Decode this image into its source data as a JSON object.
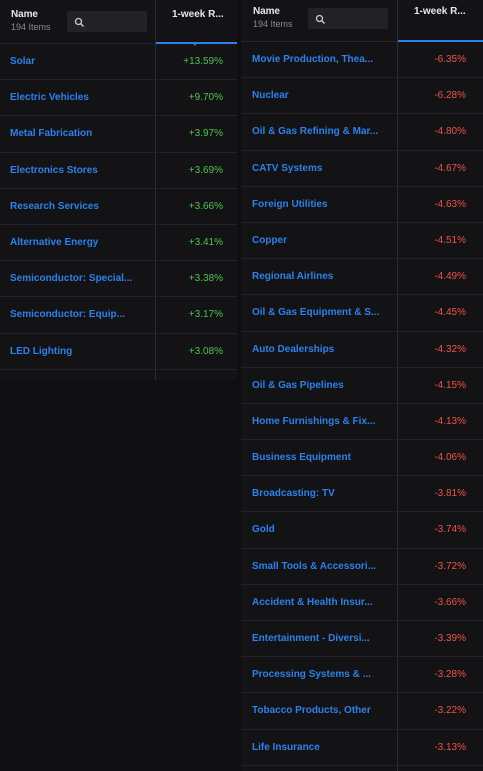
{
  "left_table": {
    "header": {
      "name": "Name",
      "count": "194 Items",
      "column": "1-week R..."
    },
    "rows": [
      {
        "name": "Solar",
        "value": "+13.59%"
      },
      {
        "name": "Electric Vehicles",
        "value": "+9.70%"
      },
      {
        "name": "Metal Fabrication",
        "value": "+3.97%"
      },
      {
        "name": "Electronics Stores",
        "value": "+3.69%"
      },
      {
        "name": "Research Services",
        "value": "+3.66%"
      },
      {
        "name": "Alternative Energy",
        "value": "+3.41%"
      },
      {
        "name": "Semiconductor: Special...",
        "value": "+3.38%"
      },
      {
        "name": "Semiconductor: Equip...",
        "value": "+3.17%"
      },
      {
        "name": "LED Lighting",
        "value": "+3.08%"
      }
    ]
  },
  "right_table": {
    "header": {
      "name": "Name",
      "count": "194 Items",
      "column": "1-week R..."
    },
    "rows": [
      {
        "name": "Movie Production, Thea...",
        "value": "-6.35%"
      },
      {
        "name": "Nuclear",
        "value": "-6.28%"
      },
      {
        "name": "Oil & Gas Refining & Mar...",
        "value": "-4.80%"
      },
      {
        "name": "CATV Systems",
        "value": "-4.67%"
      },
      {
        "name": "Foreign Utilities",
        "value": "-4.63%"
      },
      {
        "name": "Copper",
        "value": "-4.51%"
      },
      {
        "name": "Regional Airlines",
        "value": "-4.49%"
      },
      {
        "name": "Oil & Gas Equipment & S...",
        "value": "-4.45%"
      },
      {
        "name": "Auto Dealerships",
        "value": "-4.32%"
      },
      {
        "name": "Oil & Gas Pipelines",
        "value": "-4.15%"
      },
      {
        "name": "Home Furnishings & Fix...",
        "value": "-4.13%"
      },
      {
        "name": "Business Equipment",
        "value": "-4.06%"
      },
      {
        "name": "Broadcasting: TV",
        "value": "-3.81%"
      },
      {
        "name": "Gold",
        "value": "-3.74%"
      },
      {
        "name": "Small Tools & Accessori...",
        "value": "-3.72%"
      },
      {
        "name": "Accident & Health Insur...",
        "value": "-3.66%"
      },
      {
        "name": "Entertainment - Diversi...",
        "value": "-3.39%"
      },
      {
        "name": "Processing Systems & ...",
        "value": "-3.28%"
      },
      {
        "name": "Tobacco Products, Other",
        "value": "-3.22%"
      },
      {
        "name": "Life Insurance",
        "value": "-3.13%"
      }
    ]
  },
  "icons": {
    "search": "search-icon"
  },
  "colors": {
    "accent": "#2f7fe8",
    "positive": "#4fc24f",
    "negative": "#f0524a",
    "link": "#2f80ea"
  }
}
